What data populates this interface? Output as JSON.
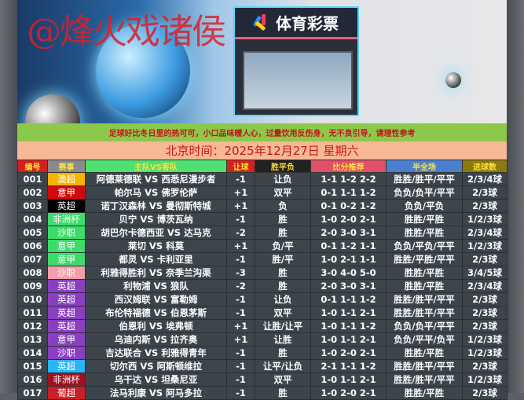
{
  "banner": {
    "watermark": "@烽火戏诸侯",
    "store_sign": "体育彩票"
  },
  "notice": "足球好比冬日里的热可可，小口品味暖人心，过量饮用反伤身，无不良引导，请理性参考",
  "date_line": "北京时间：2025年12月27日  星期六",
  "table": {
    "headers": [
      "编号",
      "赛事",
      "主队VS客队",
      "让球",
      "胜平负",
      "比分推荐",
      "半全场",
      "进球数"
    ],
    "header_colors": [
      "#d42020",
      "#8a8a8a",
      "#4ee070",
      "#d42020",
      "#222222",
      "#e05066",
      "#4a7fd0",
      "#8a7a10"
    ],
    "rows": [
      {
        "no": "001",
        "league": "澳超",
        "color": "#f4b400",
        "match": "阿德莱德联 VS 西悉尼漫步者",
        "handicap": "-1",
        "result": "让负",
        "score": "1-1 1-2 2-2",
        "half_full": "胜胜/胜平/平平",
        "goals": "2/3/4球"
      },
      {
        "no": "002",
        "league": "意甲",
        "color": "#d00a0a",
        "match": "帕尔马 VS 佛罗伦萨",
        "handicap": "+1",
        "result": "双平",
        "score": "0-1 1-1 1-2",
        "half_full": "负负/负平/平平",
        "goals": "2/3球"
      },
      {
        "no": "003",
        "league": "英超",
        "color": "#000000",
        "match": "诺丁汉森林 VS 曼彻斯特城",
        "handicap": "+1",
        "result": "负",
        "score": "0-1 0-2 1-2",
        "half_full": "负负/平负",
        "goals": "2/3球"
      },
      {
        "no": "004",
        "league": "非洲杯",
        "color": "#3ddc6a",
        "match": "贝宁 VS 博茨瓦纳",
        "handicap": "-1",
        "result": "胜",
        "score": "1-0 2-0 2-1",
        "half_full": "胜胜/平胜",
        "goals": "1/2/3球"
      },
      {
        "no": "005",
        "league": "沙职",
        "color": "#3ddc6a",
        "match": "胡巴尔卡德西亚 VS 达马克",
        "handicap": "-2",
        "result": "胜",
        "score": "2-0 3-0 3-1",
        "half_full": "胜胜/平胜",
        "goals": "2/3/4球"
      },
      {
        "no": "006",
        "league": "意甲",
        "color": "#3ddc6a",
        "match": "莱切 VS 科莫",
        "handicap": "+1",
        "result": "负/平",
        "score": "0-1 1-2 1-1",
        "half_full": "负负/平负/平平",
        "goals": "1/2/3球"
      },
      {
        "no": "007",
        "league": "意甲",
        "color": "#3ddc6a",
        "match": "都灵 VS 卡利亚里",
        "handicap": "-1",
        "result": "胜/平",
        "score": "1-0 2-1 1-1",
        "half_full": "胜胜/平胜/平平",
        "goals": "2/3球"
      },
      {
        "no": "008",
        "league": "沙职",
        "color": "#f0a0a8",
        "match": "利雅得胜利 VS 奈季兰沟渠",
        "handicap": "-3",
        "result": "胜",
        "score": "3-0 4-0 5-0",
        "half_full": "胜胜/平胜",
        "goals": "3/4/5球"
      },
      {
        "no": "009",
        "league": "英超",
        "color": "#8a3fc0",
        "match": "利物浦 VS 狼队",
        "handicap": "-2",
        "result": "胜",
        "score": "2-0 3-0 3-1",
        "half_full": "胜胜/平胜",
        "goals": "2/3/4球"
      },
      {
        "no": "010",
        "league": "英超",
        "color": "#8a3fc0",
        "match": "西汉姆联 VS 富勒姆",
        "handicap": "-1",
        "result": "让负",
        "score": "0-1 1-1 1-2",
        "half_full": "胜胜/胜平/平平",
        "goals": "2/3球"
      },
      {
        "no": "011",
        "league": "英超",
        "color": "#8a3fc0",
        "match": "布伦特福德 VS 伯恩茅斯",
        "handicap": "-1",
        "result": "双平",
        "score": "1-0 1-1 2-1",
        "half_full": "胜胜/胜平/平平",
        "goals": "2/3球"
      },
      {
        "no": "012",
        "league": "英超",
        "color": "#8a3fc0",
        "match": "伯恩利 VS 埃弗顿",
        "handicap": "+1",
        "result": "让胜/让平",
        "score": "1-0 1-1 1-2",
        "half_full": "负负/负平/平平",
        "goals": "2/3球"
      },
      {
        "no": "013",
        "league": "意甲",
        "color": "#8a3fc0",
        "match": "乌迪内斯 VS 拉齐奥",
        "handicap": "+1",
        "result": "让胜",
        "score": "1-0 1-1 2-1",
        "half_full": "负负/平平/负平",
        "goals": "1/2/3球"
      },
      {
        "no": "014",
        "league": "沙职",
        "color": "#8a3fc0",
        "match": "吉达联合 VS 利雅得青年",
        "handicap": "-1",
        "result": "胜",
        "score": "1-0 2-0 2-1",
        "half_full": "胜胜/平胜",
        "goals": "1/2/3球"
      },
      {
        "no": "015",
        "league": "英超",
        "color": "#29b6f6",
        "match": "切尔西 VS 阿斯顿维拉",
        "handicap": "-1",
        "result": "让平/让负",
        "score": "2-1 1-1 1-2",
        "half_full": "胜胜/胜平/平平",
        "goals": "2/3球"
      },
      {
        "no": "016",
        "league": "非洲杯",
        "color": "#a01020",
        "match": "乌干达 VS 坦桑尼亚",
        "handicap": "-1",
        "result": "双平",
        "score": "1-0 1-1 2-1",
        "half_full": "胜胜/胜平/平平",
        "goals": "1/2/3球"
      },
      {
        "no": "017",
        "league": "葡超",
        "color": "#c8202a",
        "match": "法马利康 VS 阿马多拉",
        "handicap": "-1",
        "result": "胜",
        "score": "1-0 2-0 2-1",
        "half_full": "胜胜/平胜",
        "goals": "2/3球"
      }
    ]
  }
}
